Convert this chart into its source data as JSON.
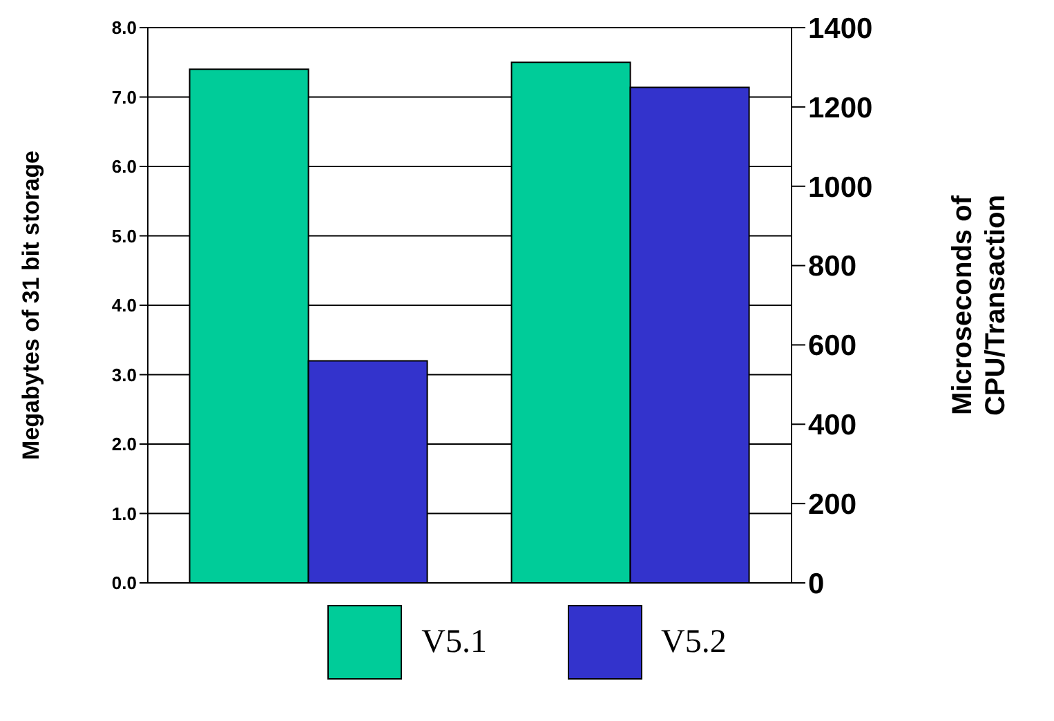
{
  "chart_data": {
    "type": "bar",
    "categories": [
      null,
      null
    ],
    "ylabel": "Megabytes of 31 bit storage",
    "y2label": "Microseconds of CPU/Transaction",
    "series": [
      {
        "name": "V5.1",
        "color": "#00cc99",
        "values": [
          7.4,
          7.5
        ]
      },
      {
        "name": "V5.2",
        "color": "#3333cc",
        "values": [
          3.2,
          7.14
        ]
      }
    ],
    "ylim": [
      0,
      8
    ],
    "yticks": [
      {
        "value": 0,
        "label": "0.0"
      },
      {
        "value": 1,
        "label": "1.0"
      },
      {
        "value": 2,
        "label": "2.0"
      },
      {
        "value": 3,
        "label": "3.0"
      },
      {
        "value": 4,
        "label": "4.0"
      },
      {
        "value": 5,
        "label": "5.0"
      },
      {
        "value": 6,
        "label": "6.0"
      },
      {
        "value": 7,
        "label": "7.0"
      },
      {
        "value": 8,
        "label": "8.0"
      }
    ],
    "y2lim": [
      0,
      1400
    ],
    "y2ticks": [
      0,
      200,
      400,
      600,
      800,
      1000,
      1200,
      1400
    ],
    "grid": "y",
    "legend": "bottom"
  }
}
